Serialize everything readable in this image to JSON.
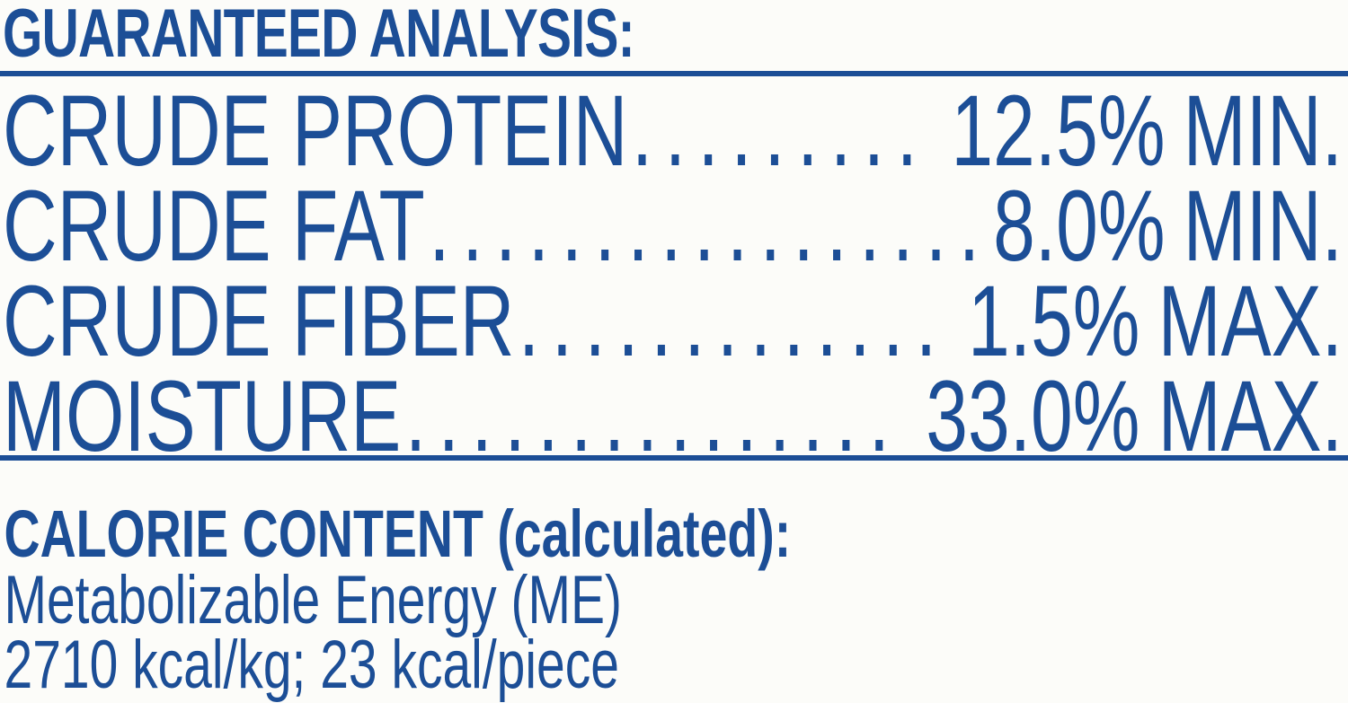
{
  "colors": {
    "text_blue": "#1C4E96",
    "background": "#FCFCF9"
  },
  "guaranteed_analysis": {
    "title": "GUARANTEED ANALYSIS:",
    "rows": [
      {
        "label": "CRUDE PROTEIN",
        "amount": "12.5%",
        "qualifier": "MIN."
      },
      {
        "label": "CRUDE FAT",
        "amount": "8.0%",
        "qualifier": "MIN."
      },
      {
        "label": "CRUDE FIBER",
        "amount": "1.5%",
        "qualifier": "MAX."
      },
      {
        "label": "MOISTURE",
        "amount": "33.0%",
        "qualifier": "MAX."
      }
    ]
  },
  "calorie_content": {
    "title": "CALORIE CONTENT (calculated):",
    "lines": [
      "Metabolizable Energy (ME)",
      "2710 kcal/kg; 23 kcal/piece"
    ]
  },
  "leader_dots": "............................................."
}
